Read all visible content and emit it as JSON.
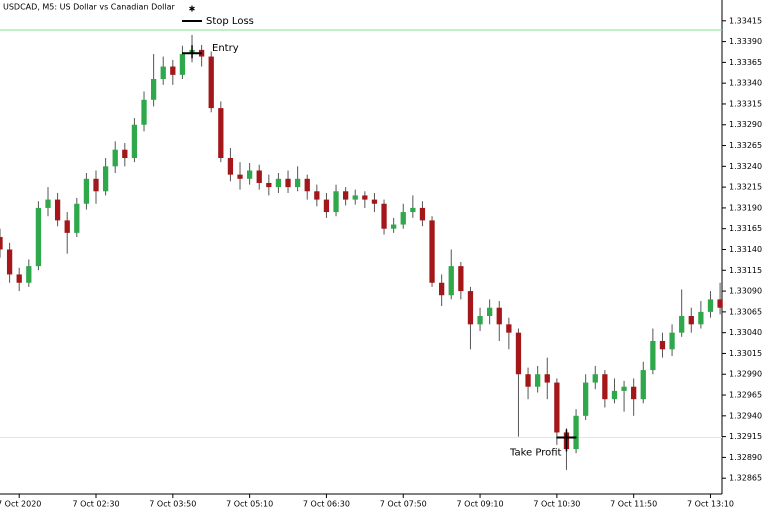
{
  "chart_data": {
    "type": "candlestick",
    "title": "USDCAD, M5:  US Dollar vs Canadian Dollar",
    "up_color": "#2ea84a",
    "down_color": "#a3161a",
    "x": [
      -2,
      -1,
      0,
      1,
      2,
      3,
      4,
      5,
      6,
      7,
      8,
      9,
      10,
      11,
      12,
      13,
      14,
      15,
      16,
      17,
      18,
      19,
      20,
      21,
      22,
      23,
      24,
      25,
      26,
      27,
      28,
      29,
      30,
      31,
      32,
      33,
      34,
      35,
      36,
      37,
      38,
      39,
      40,
      41,
      42,
      43,
      44,
      45,
      46,
      47,
      48,
      49,
      50,
      51,
      52,
      53,
      54,
      55,
      56,
      57,
      58,
      59,
      60,
      61,
      62,
      63,
      64,
      65,
      66,
      67,
      68,
      69,
      70,
      71,
      72,
      73
    ],
    "open": [
      1.33155,
      1.3314,
      1.3311,
      1.331,
      1.3312,
      1.3319,
      1.332,
      1.33175,
      1.3316,
      1.33195,
      1.33225,
      1.3321,
      1.3324,
      1.3326,
      1.3325,
      1.3329,
      1.3332,
      1.33345,
      1.3336,
      1.3335,
      1.33375,
      1.3338,
      1.33372,
      1.3331,
      1.3325,
      1.3323,
      1.33225,
      1.33235,
      1.3322,
      1.33215,
      1.33225,
      1.33215,
      1.33225,
      1.3321,
      1.332,
      1.33185,
      1.3321,
      1.332,
      1.33205,
      1.332,
      1.33195,
      1.33165,
      1.3317,
      1.33185,
      1.3319,
      1.33175,
      1.331,
      1.33085,
      1.3312,
      1.3309,
      1.3305,
      1.3306,
      1.3307,
      1.3305,
      1.3304,
      1.3299,
      1.32975,
      1.3299,
      1.3298,
      1.3292,
      1.329,
      1.3294,
      1.3298,
      1.3299,
      1.3296,
      1.3297,
      1.32975,
      1.3296,
      1.32995,
      1.3303,
      1.3302,
      1.3304,
      1.3306,
      1.3305,
      1.33065,
      1.3308
    ],
    "high": [
      1.33165,
      1.33148,
      1.33118,
      1.33128,
      1.33198,
      1.33215,
      1.33208,
      1.33185,
      1.33202,
      1.33232,
      1.33235,
      1.3325,
      1.3327,
      1.33268,
      1.33298,
      1.3333,
      1.33375,
      1.33372,
      1.33368,
      1.33385,
      1.33398,
      1.33386,
      1.33378,
      1.33318,
      1.33262,
      1.33245,
      1.33244,
      1.33242,
      1.3323,
      1.33232,
      1.33235,
      1.3324,
      1.3323,
      1.33218,
      1.33208,
      1.33218,
      1.33215,
      1.33212,
      1.3321,
      1.33208,
      1.332,
      1.33178,
      1.33195,
      1.33205,
      1.33198,
      1.3318,
      1.3311,
      1.3314,
      1.33125,
      1.33095,
      1.3307,
      1.3308,
      1.33078,
      1.33058,
      1.33045,
      1.32998,
      1.33,
      1.3301,
      1.32985,
      1.32925,
      1.32948,
      1.3299,
      1.33,
      1.32995,
      1.32985,
      1.32982,
      1.32985,
      1.33005,
      1.33045,
      1.3304,
      1.3305,
      1.33092,
      1.3307,
      1.33078,
      1.3309,
      1.331
    ],
    "low": [
      1.3313,
      1.331,
      1.3309,
      1.33095,
      1.33115,
      1.3318,
      1.33168,
      1.33135,
      1.33155,
      1.33188,
      1.33195,
      1.33205,
      1.33232,
      1.3324,
      1.33245,
      1.33282,
      1.33312,
      1.33338,
      1.33338,
      1.33345,
      1.33365,
      1.3336,
      1.33305,
      1.33245,
      1.33222,
      1.33212,
      1.33218,
      1.33212,
      1.33205,
      1.33208,
      1.33208,
      1.3321,
      1.332,
      1.33192,
      1.33178,
      1.3318,
      1.33193,
      1.33194,
      1.3319,
      1.33185,
      1.33158,
      1.3316,
      1.33165,
      1.33178,
      1.33168,
      1.33095,
      1.33072,
      1.3308,
      1.3308,
      1.3302,
      1.33042,
      1.3305,
      1.3303,
      1.3302,
      1.32915,
      1.3296,
      1.32968,
      1.3296,
      1.32905,
      1.32875,
      1.32895,
      1.32935,
      1.32972,
      1.3295,
      1.32955,
      1.32945,
      1.3294,
      1.32955,
      1.3299,
      1.3301,
      1.33012,
      1.33035,
      1.3304,
      1.33045,
      1.33058,
      1.33062
    ],
    "close": [
      1.3314,
      1.3311,
      1.331,
      1.3312,
      1.3319,
      1.332,
      1.33175,
      1.3316,
      1.33195,
      1.33225,
      1.3321,
      1.3324,
      1.3326,
      1.3325,
      1.3329,
      1.3332,
      1.33345,
      1.3336,
      1.3335,
      1.33375,
      1.3338,
      1.33372,
      1.3331,
      1.3325,
      1.3323,
      1.33225,
      1.33235,
      1.3322,
      1.33215,
      1.33225,
      1.33215,
      1.33225,
      1.3321,
      1.332,
      1.33185,
      1.3321,
      1.332,
      1.33205,
      1.332,
      1.33195,
      1.33165,
      1.3317,
      1.33185,
      1.3319,
      1.33175,
      1.331,
      1.33085,
      1.3312,
      1.3309,
      1.3305,
      1.3306,
      1.3307,
      1.3305,
      1.3304,
      1.3299,
      1.32975,
      1.3299,
      1.3298,
      1.3292,
      1.329,
      1.3294,
      1.3298,
      1.3299,
      1.3296,
      1.3297,
      1.32975,
      1.3296,
      1.32995,
      1.3303,
      1.3302,
      1.3304,
      1.3306,
      1.3305,
      1.33065,
      1.3308,
      1.3307
    ],
    "xlim": [
      -2,
      73.2
    ],
    "xticks": [
      {
        "value": 0,
        "label": "7 Oct 2020"
      },
      {
        "value": 8,
        "label": "7 Oct 02:30"
      },
      {
        "value": 16,
        "label": "7 Oct 03:50"
      },
      {
        "value": 24,
        "label": "7 Oct 05:10"
      },
      {
        "value": 32,
        "label": "7 Oct 06:30"
      },
      {
        "value": 40,
        "label": "7 Oct 07:50"
      },
      {
        "value": 48,
        "label": "7 Oct 09:10"
      },
      {
        "value": 56,
        "label": "7 Oct 10:30"
      },
      {
        "value": 64,
        "label": "7 Oct 11:50"
      },
      {
        "value": 72,
        "label": "7 Oct 13:10"
      }
    ],
    "ylim": [
      1.32846,
      1.3344
    ],
    "yticks": [
      1.33415,
      {
        "value": 1.3339,
        "label": "1.33390"
      },
      1.33365,
      {
        "value": 1.3334,
        "label": "1.33340"
      },
      1.33315,
      {
        "value": 1.3329,
        "label": "1.33290"
      },
      1.33265,
      {
        "value": 1.3324,
        "label": "1.33240"
      },
      1.33215,
      {
        "value": 1.3319,
        "label": "1.33190"
      },
      1.33165,
      {
        "value": 1.3314,
        "label": "1.33140"
      },
      1.33115,
      {
        "value": 1.3309,
        "label": "1.33090"
      },
      1.33065,
      {
        "value": 1.3304,
        "label": "1.33040"
      },
      1.33015,
      {
        "value": 1.3299,
        "label": "1.32990"
      },
      1.32965,
      {
        "value": 1.3294,
        "label": "1.32940"
      },
      1.32915,
      {
        "value": 1.3289,
        "label": "1.32890"
      },
      1.32865
    ],
    "annotations": [
      {
        "label": "Stop Loss",
        "value": 1.33404,
        "x": 18,
        "color": "#7fe08c",
        "line": "full"
      },
      {
        "label": "Entry",
        "value": 1.33376,
        "x": 18,
        "color": "#000000",
        "line": "marker"
      },
      {
        "label": "Take Profit",
        "value": 1.32914,
        "x": 57,
        "color": "#f5f07a",
        "line": "full"
      }
    ]
  }
}
